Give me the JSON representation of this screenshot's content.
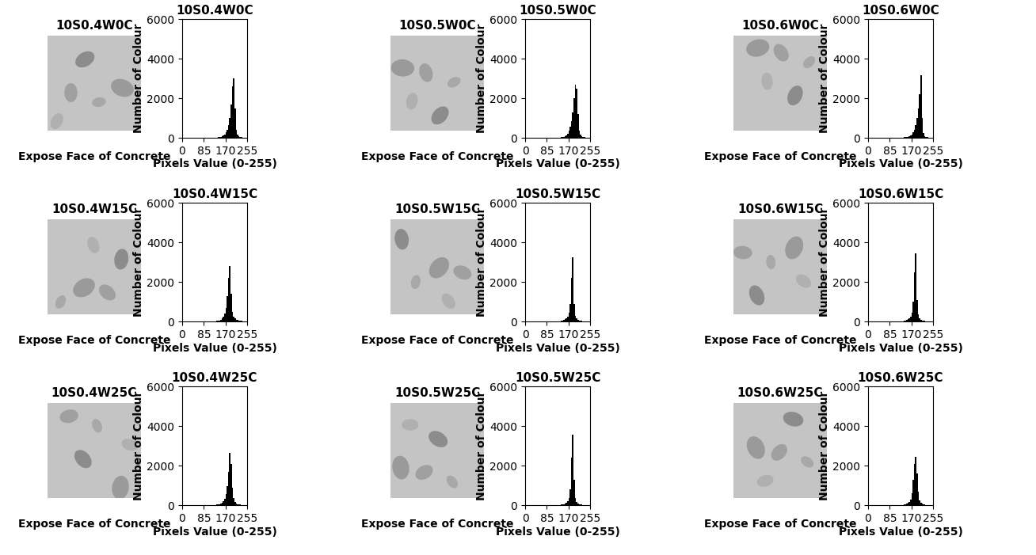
{
  "images": [
    {
      "title": "10S0.4W0C",
      "caption": "Expose Face of Concrete"
    },
    {
      "title": "10S0.5W0C",
      "caption": "Expose Face of Concrete"
    },
    {
      "title": "10S0.6W0C",
      "caption": "Expose Face of Concrete"
    },
    {
      "title": "10S0.4W15C",
      "caption": "Expose Face of Concrete"
    },
    {
      "title": "10S0.5W15C",
      "caption": "Expose Face of Concrete"
    },
    {
      "title": "10S0.6W15C",
      "caption": "Expose Face of Concrete"
    },
    {
      "title": "10S0.4W25C",
      "caption": "Expose Face of Concrete"
    },
    {
      "title": "10S0.5W25C",
      "caption": "Expose Face of Concrete"
    },
    {
      "title": "10S0.6W25C",
      "caption": "Expose Face of Concrete"
    }
  ],
  "chart_data": [
    {
      "type": "histogram",
      "title": "10S0.4W0C",
      "x_label": "Pixels Value (0-255)",
      "y_label": "Number of Colour",
      "color": "#000000",
      "bins": [
        0,
        125,
        130,
        135,
        140,
        145,
        150,
        155,
        160,
        165,
        170,
        175,
        180,
        185,
        190,
        195,
        200,
        205,
        210,
        215,
        220,
        225,
        230,
        235,
        255
      ],
      "counts": [
        5,
        10,
        15,
        20,
        25,
        35,
        50,
        70,
        110,
        180,
        280,
        420,
        650,
        1000,
        1700,
        2600,
        3000,
        1500,
        400,
        150,
        80,
        50,
        30,
        15
      ],
      "xlim": [
        0,
        255
      ],
      "xticks": [
        0,
        85,
        170,
        255
      ],
      "ylim": [
        0,
        6000
      ],
      "yticks": [
        0,
        2000,
        4000,
        6000
      ]
    },
    {
      "type": "histogram",
      "title": "10S0.5W0C",
      "x_label": "Pixels Value (0-255)",
      "y_label": "Number of Colour",
      "color": "#000000",
      "bins": [
        0,
        125,
        130,
        135,
        140,
        145,
        150,
        155,
        160,
        165,
        170,
        175,
        180,
        185,
        190,
        195,
        200,
        205,
        210,
        215,
        220,
        225,
        230,
        235,
        255
      ],
      "counts": [
        5,
        10,
        15,
        20,
        30,
        40,
        60,
        90,
        140,
        220,
        350,
        550,
        850,
        1300,
        2000,
        2700,
        2500,
        1200,
        350,
        150,
        80,
        50,
        30,
        15
      ],
      "xlim": [
        0,
        255
      ],
      "xticks": [
        0,
        85,
        170,
        255
      ],
      "ylim": [
        0,
        6000
      ],
      "yticks": [
        0,
        2000,
        4000,
        6000
      ]
    },
    {
      "type": "histogram",
      "title": "10S0.6W0C",
      "x_label": "Pixels Value (0-255)",
      "y_label": "Number of Colour",
      "color": "#000000",
      "bins": [
        0,
        125,
        130,
        135,
        140,
        145,
        150,
        155,
        160,
        165,
        170,
        175,
        180,
        185,
        190,
        195,
        200,
        205,
        210,
        215,
        220,
        225,
        230,
        235,
        255
      ],
      "counts": [
        5,
        10,
        15,
        20,
        25,
        30,
        40,
        55,
        80,
        120,
        180,
        280,
        420,
        650,
        1000,
        1500,
        2200,
        3150,
        1000,
        250,
        100,
        50,
        30,
        15
      ],
      "xlim": [
        0,
        255
      ],
      "xticks": [
        0,
        85,
        170,
        255
      ],
      "ylim": [
        0,
        6000
      ],
      "yticks": [
        0,
        2000,
        4000,
        6000
      ]
    },
    {
      "type": "histogram",
      "title": "10S0.4W15C",
      "x_label": "Pixels Value (0-255)",
      "y_label": "Number of Colour",
      "color": "#000000",
      "bins": [
        0,
        125,
        130,
        135,
        140,
        145,
        150,
        155,
        160,
        165,
        170,
        175,
        180,
        185,
        190,
        195,
        200,
        205,
        210,
        215,
        220,
        225,
        230,
        235,
        255
      ],
      "counts": [
        5,
        10,
        15,
        25,
        40,
        60,
        100,
        160,
        260,
        420,
        700,
        1300,
        2200,
        2800,
        1400,
        500,
        250,
        150,
        100,
        70,
        50,
        35,
        25,
        15
      ],
      "xlim": [
        0,
        255
      ],
      "xticks": [
        0,
        85,
        170,
        255
      ],
      "ylim": [
        0,
        6000
      ],
      "yticks": [
        0,
        2000,
        4000,
        6000
      ]
    },
    {
      "type": "histogram",
      "title": "10S0.5W15C",
      "x_label": "Pixels Value (0-255)",
      "y_label": "Number of Colour",
      "color": "#000000",
      "bins": [
        0,
        125,
        130,
        135,
        140,
        145,
        150,
        155,
        160,
        165,
        170,
        175,
        180,
        185,
        190,
        195,
        200,
        205,
        210,
        215,
        220,
        225,
        230,
        235,
        255
      ],
      "counts": [
        5,
        10,
        15,
        20,
        30,
        45,
        70,
        110,
        170,
        260,
        450,
        900,
        2200,
        3250,
        900,
        300,
        150,
        90,
        60,
        40,
        30,
        20,
        15,
        10
      ],
      "xlim": [
        0,
        255
      ],
      "xticks": [
        0,
        85,
        170,
        255
      ],
      "ylim": [
        0,
        6000
      ],
      "yticks": [
        0,
        2000,
        4000,
        6000
      ]
    },
    {
      "type": "histogram",
      "title": "10S0.6W15C",
      "x_label": "Pixels Value (0-255)",
      "y_label": "Number of Colour",
      "color": "#000000",
      "bins": [
        0,
        125,
        130,
        135,
        140,
        145,
        150,
        155,
        160,
        165,
        170,
        175,
        180,
        185,
        190,
        195,
        200,
        205,
        210,
        215,
        220,
        225,
        230,
        235,
        255
      ],
      "counts": [
        5,
        10,
        15,
        20,
        30,
        45,
        70,
        110,
        170,
        260,
        450,
        1000,
        2500,
        3450,
        1100,
        350,
        150,
        90,
        60,
        40,
        30,
        20,
        15,
        10
      ],
      "xlim": [
        0,
        255
      ],
      "xticks": [
        0,
        85,
        170,
        255
      ],
      "ylim": [
        0,
        6000
      ],
      "yticks": [
        0,
        2000,
        4000,
        6000
      ]
    },
    {
      "type": "histogram",
      "title": "10S0.4W25C",
      "x_label": "Pixels Value (0-255)",
      "y_label": "Number of Colour",
      "color": "#000000",
      "bins": [
        0,
        125,
        130,
        135,
        140,
        145,
        150,
        155,
        160,
        165,
        170,
        175,
        180,
        185,
        190,
        195,
        200,
        205,
        210,
        215,
        220,
        225,
        230,
        235,
        255
      ],
      "counts": [
        5,
        10,
        15,
        25,
        35,
        50,
        80,
        130,
        200,
        330,
        550,
        950,
        1700,
        2650,
        2100,
        900,
        350,
        150,
        90,
        60,
        40,
        30,
        20,
        10
      ],
      "xlim": [
        0,
        255
      ],
      "xticks": [
        0,
        85,
        170,
        255
      ],
      "ylim": [
        0,
        6000
      ],
      "yticks": [
        0,
        2000,
        4000,
        6000
      ]
    },
    {
      "type": "histogram",
      "title": "10S0.5W25C",
      "x_label": "Pixels Value (0-255)",
      "y_label": "Number of Colour",
      "color": "#000000",
      "bins": [
        0,
        125,
        130,
        135,
        140,
        145,
        150,
        155,
        160,
        165,
        170,
        175,
        180,
        185,
        190,
        195,
        200,
        205,
        210,
        215,
        220,
        225,
        230,
        235,
        255
      ],
      "counts": [
        5,
        10,
        15,
        20,
        25,
        35,
        50,
        80,
        120,
        200,
        350,
        800,
        2400,
        3550,
        1300,
        350,
        150,
        80,
        50,
        35,
        25,
        20,
        15,
        10
      ],
      "xlim": [
        0,
        255
      ],
      "xticks": [
        0,
        85,
        170,
        255
      ],
      "ylim": [
        0,
        6000
      ],
      "yticks": [
        0,
        2000,
        4000,
        6000
      ]
    },
    {
      "type": "histogram",
      "title": "10S0.6W25C",
      "x_label": "Pixels Value (0-255)",
      "y_label": "Number of Colour",
      "color": "#000000",
      "bins": [
        0,
        125,
        130,
        135,
        140,
        145,
        150,
        155,
        160,
        165,
        170,
        175,
        180,
        185,
        190,
        195,
        200,
        205,
        210,
        215,
        220,
        225,
        230,
        235,
        255
      ],
      "counts": [
        5,
        10,
        15,
        20,
        30,
        45,
        70,
        110,
        180,
        300,
        600,
        1300,
        2100,
        2450,
        1600,
        700,
        250,
        120,
        70,
        45,
        30,
        20,
        15,
        10
      ],
      "xlim": [
        0,
        255
      ],
      "xticks": [
        0,
        85,
        170,
        255
      ],
      "ylim": [
        0,
        6000
      ],
      "yticks": [
        0,
        2000,
        4000,
        6000
      ]
    }
  ]
}
